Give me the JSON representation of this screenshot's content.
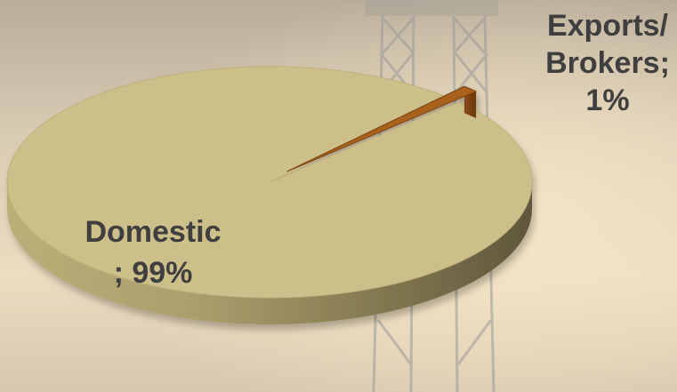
{
  "chart_data": {
    "type": "pie",
    "style": "3d-exploded",
    "slices": [
      {
        "name": "Domestic",
        "value": 99,
        "color": "#cdbf8a",
        "label_lines": [
          "Domestic",
          "; 99%"
        ]
      },
      {
        "name": "Exports/ Brokers",
        "value": 1,
        "color": "#a8621c",
        "label_lines": [
          "Exports/",
          "Brokers;",
          "1%"
        ]
      }
    ],
    "title": "",
    "legend": "none"
  }
}
